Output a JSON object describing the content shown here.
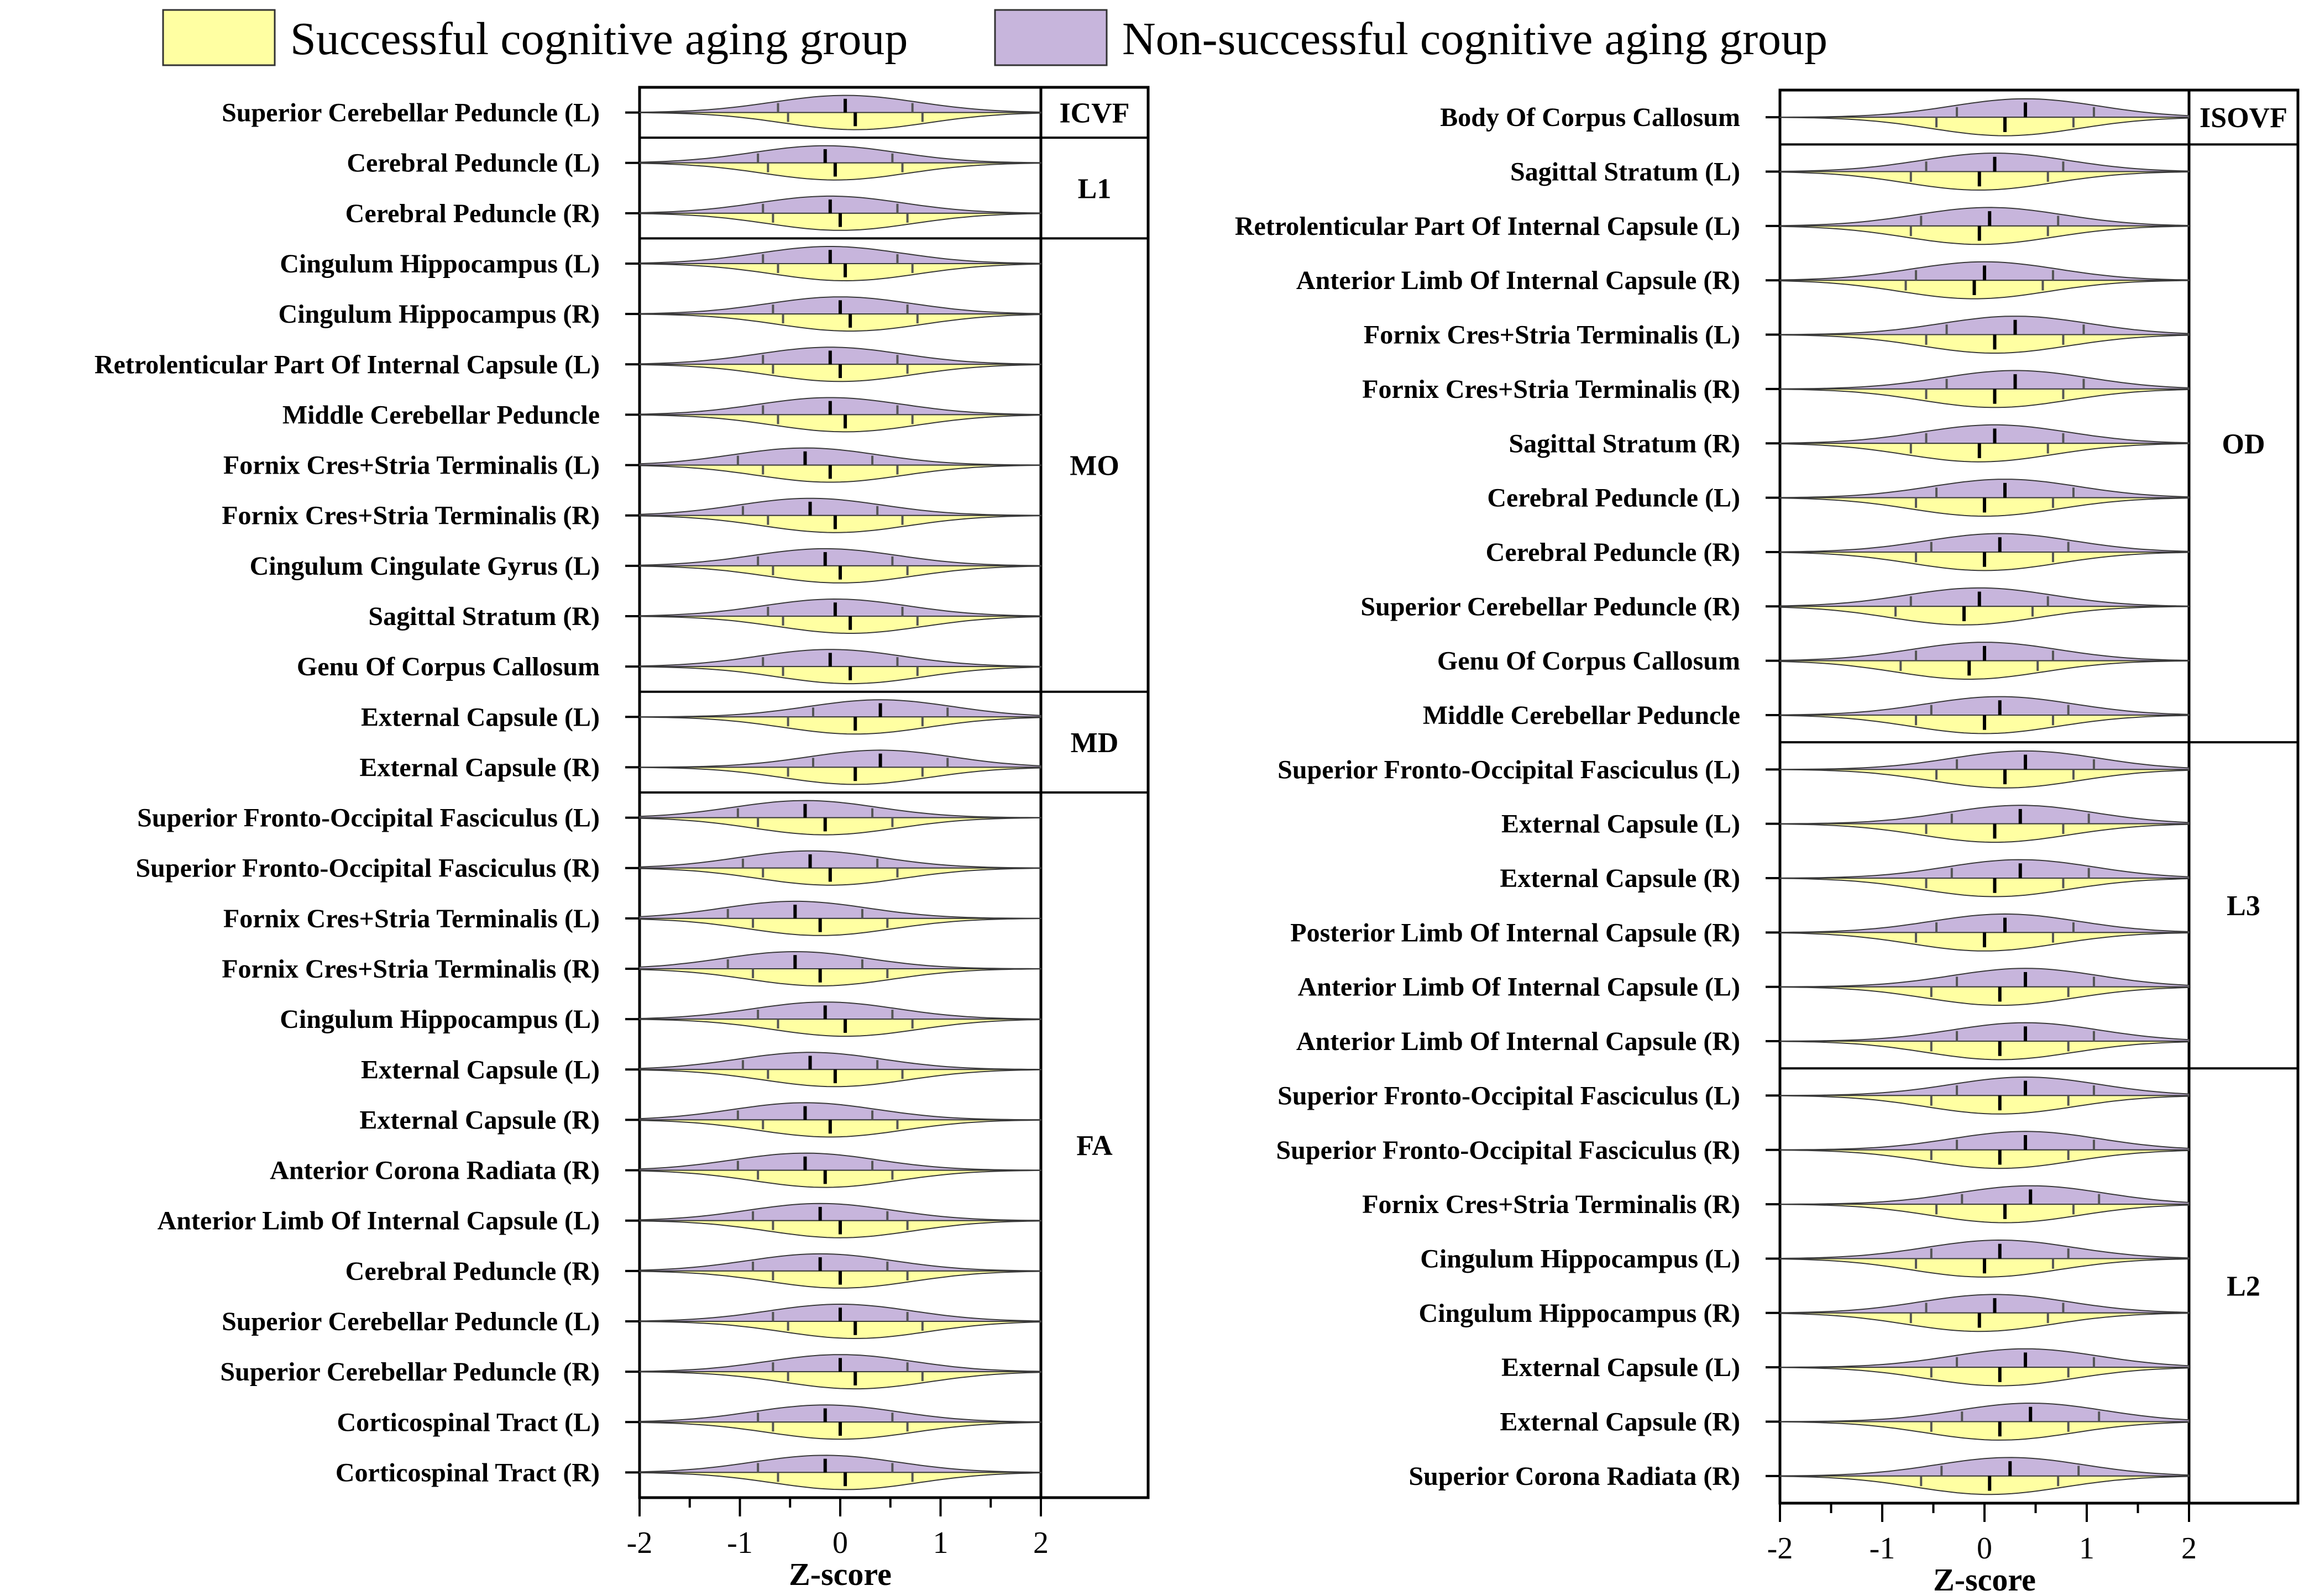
{
  "legend": {
    "successful": "Successful cognitive aging group",
    "nonsuccessful": "Non-successful cognitive aging group"
  },
  "colors": {
    "successful": "#ffffa2",
    "nonsuccessful": "#c7b5dc",
    "outline": "#3a3a3a"
  },
  "chart_data": [
    {
      "type": "violin",
      "panel": "left",
      "xlabel": "Z-score",
      "xlim": [
        -2,
        2
      ],
      "xticks": [
        "-2",
        "-1",
        "0",
        "1",
        "2"
      ],
      "groups": [
        {
          "name": "ICVF",
          "rows": [
            {
              "label": "Superior Cerebellar Peduncle (L)",
              "nonsuccessful_median": 0.05,
              "successful_median": 0.15
            }
          ]
        },
        {
          "name": "L1",
          "rows": [
            {
              "label": "Cerebral Peduncle (L)",
              "nonsuccessful_median": -0.15,
              "successful_median": -0.05
            },
            {
              "label": "Cerebral Peduncle (R)",
              "nonsuccessful_median": -0.1,
              "successful_median": 0.0
            }
          ]
        },
        {
          "name": "MO",
          "rows": [
            {
              "label": "Cingulum Hippocampus (L)",
              "nonsuccessful_median": -0.1,
              "successful_median": 0.05
            },
            {
              "label": "Cingulum Hippocampus (R)",
              "nonsuccessful_median": 0.0,
              "successful_median": 0.1
            },
            {
              "label": "Retrolenticular Part Of Internal Capsule (L)",
              "nonsuccessful_median": -0.1,
              "successful_median": 0.0
            },
            {
              "label": "Middle Cerebellar Peduncle",
              "nonsuccessful_median": -0.1,
              "successful_median": 0.05
            },
            {
              "label": "Fornix Cres+Stria Terminalis (L)",
              "nonsuccessful_median": -0.35,
              "successful_median": -0.1
            },
            {
              "label": "Fornix Cres+Stria Terminalis (R)",
              "nonsuccessful_median": -0.3,
              "successful_median": -0.05
            },
            {
              "label": "Cingulum Cingulate Gyrus (L)",
              "nonsuccessful_median": -0.15,
              "successful_median": 0.0
            },
            {
              "label": "Sagittal Stratum (R)",
              "nonsuccessful_median": -0.05,
              "successful_median": 0.1
            },
            {
              "label": "Genu Of Corpus Callosum",
              "nonsuccessful_median": -0.1,
              "successful_median": 0.1
            }
          ]
        },
        {
          "name": "MD",
          "rows": [
            {
              "label": "External Capsule (L)",
              "nonsuccessful_median": 0.4,
              "successful_median": 0.15
            },
            {
              "label": "External Capsule (R)",
              "nonsuccessful_median": 0.4,
              "successful_median": 0.15
            }
          ]
        },
        {
          "name": "FA",
          "rows": [
            {
              "label": "Superior Fronto-Occipital Fasciculus (L)",
              "nonsuccessful_median": -0.35,
              "successful_median": -0.15
            },
            {
              "label": "Superior Fronto-Occipital Fasciculus (R)",
              "nonsuccessful_median": -0.3,
              "successful_median": -0.1
            },
            {
              "label": "Fornix Cres+Stria Terminalis (L)",
              "nonsuccessful_median": -0.45,
              "successful_median": -0.2
            },
            {
              "label": "Fornix Cres+Stria Terminalis (R)",
              "nonsuccessful_median": -0.45,
              "successful_median": -0.2
            },
            {
              "label": "Cingulum Hippocampus (L)",
              "nonsuccessful_median": -0.15,
              "successful_median": 0.05
            },
            {
              "label": "External Capsule (L)",
              "nonsuccessful_median": -0.3,
              "successful_median": -0.05
            },
            {
              "label": "External Capsule (R)",
              "nonsuccessful_median": -0.35,
              "successful_median": -0.1
            },
            {
              "label": "Anterior Corona Radiata (R)",
              "nonsuccessful_median": -0.35,
              "successful_median": -0.15
            },
            {
              "label": "Anterior Limb Of Internal Capsule (L)",
              "nonsuccessful_median": -0.2,
              "successful_median": 0.0
            },
            {
              "label": "Cerebral Peduncle (R)",
              "nonsuccessful_median": -0.2,
              "successful_median": 0.0
            },
            {
              "label": "Superior Cerebellar Peduncle (L)",
              "nonsuccessful_median": 0.0,
              "successful_median": 0.15
            },
            {
              "label": "Superior Cerebellar Peduncle (R)",
              "nonsuccessful_median": 0.0,
              "successful_median": 0.15
            },
            {
              "label": "Corticospinal Tract (L)",
              "nonsuccessful_median": -0.15,
              "successful_median": 0.0
            },
            {
              "label": "Corticospinal Tract (R)",
              "nonsuccessful_median": -0.15,
              "successful_median": 0.05
            }
          ]
        }
      ]
    },
    {
      "type": "violin",
      "panel": "right",
      "xlabel": "Z-score",
      "xlim": [
        -2,
        2
      ],
      "xticks": [
        "-2",
        "-1",
        "0",
        "1",
        "2"
      ],
      "groups": [
        {
          "name": "ISOVF",
          "rows": [
            {
              "label": "Body Of Corpus Callosum",
              "nonsuccessful_median": 0.4,
              "successful_median": 0.2
            }
          ]
        },
        {
          "name": "OD",
          "rows": [
            {
              "label": "Sagittal Stratum (L)",
              "nonsuccessful_median": 0.1,
              "successful_median": -0.05
            },
            {
              "label": "Retrolenticular Part Of Internal Capsule (L)",
              "nonsuccessful_median": 0.05,
              "successful_median": -0.05
            },
            {
              "label": "Anterior Limb Of Internal Capsule (R)",
              "nonsuccessful_median": 0.0,
              "successful_median": -0.1
            },
            {
              "label": "Fornix Cres+Stria Terminalis (L)",
              "nonsuccessful_median": 0.3,
              "successful_median": 0.1
            },
            {
              "label": "Fornix Cres+Stria Terminalis (R)",
              "nonsuccessful_median": 0.3,
              "successful_median": 0.1
            },
            {
              "label": "Sagittal Stratum (R)",
              "nonsuccessful_median": 0.1,
              "successful_median": -0.05
            },
            {
              "label": "Cerebral Peduncle (L)",
              "nonsuccessful_median": 0.2,
              "successful_median": 0.0
            },
            {
              "label": "Cerebral Peduncle (R)",
              "nonsuccessful_median": 0.15,
              "successful_median": 0.0
            },
            {
              "label": "Superior Cerebellar Peduncle (R)",
              "nonsuccessful_median": -0.05,
              "successful_median": -0.2
            },
            {
              "label": "Genu Of Corpus Callosum",
              "nonsuccessful_median": 0.0,
              "successful_median": -0.15
            },
            {
              "label": "Middle Cerebellar Peduncle",
              "nonsuccessful_median": 0.15,
              "successful_median": 0.0
            }
          ]
        },
        {
          "name": "L3",
          "rows": [
            {
              "label": "Superior Fronto-Occipital Fasciculus (L)",
              "nonsuccessful_median": 0.4,
              "successful_median": 0.2
            },
            {
              "label": "External Capsule (L)",
              "nonsuccessful_median": 0.35,
              "successful_median": 0.1
            },
            {
              "label": "External Capsule (R)",
              "nonsuccessful_median": 0.35,
              "successful_median": 0.1
            },
            {
              "label": "Posterior Limb Of Internal Capsule (R)",
              "nonsuccessful_median": 0.2,
              "successful_median": 0.0
            },
            {
              "label": "Anterior Limb Of Internal Capsule (L)",
              "nonsuccessful_median": 0.4,
              "successful_median": 0.15
            },
            {
              "label": "Anterior Limb Of Internal Capsule (R)",
              "nonsuccessful_median": 0.4,
              "successful_median": 0.15
            }
          ]
        },
        {
          "name": "L2",
          "rows": [
            {
              "label": "Superior Fronto-Occipital Fasciculus (L)",
              "nonsuccessful_median": 0.4,
              "successful_median": 0.15
            },
            {
              "label": "Superior Fronto-Occipital Fasciculus (R)",
              "nonsuccessful_median": 0.4,
              "successful_median": 0.15
            },
            {
              "label": "Fornix Cres+Stria Terminalis (R)",
              "nonsuccessful_median": 0.45,
              "successful_median": 0.2
            },
            {
              "label": "Cingulum Hippocampus (L)",
              "nonsuccessful_median": 0.15,
              "successful_median": 0.0
            },
            {
              "label": "Cingulum Hippocampus (R)",
              "nonsuccessful_median": 0.1,
              "successful_median": -0.05
            },
            {
              "label": "External Capsule (L)",
              "nonsuccessful_median": 0.4,
              "successful_median": 0.15
            },
            {
              "label": "External Capsule (R)",
              "nonsuccessful_median": 0.45,
              "successful_median": 0.15
            },
            {
              "label": "Superior Corona Radiata (R)",
              "nonsuccessful_median": 0.25,
              "successful_median": 0.05
            }
          ]
        }
      ]
    }
  ]
}
